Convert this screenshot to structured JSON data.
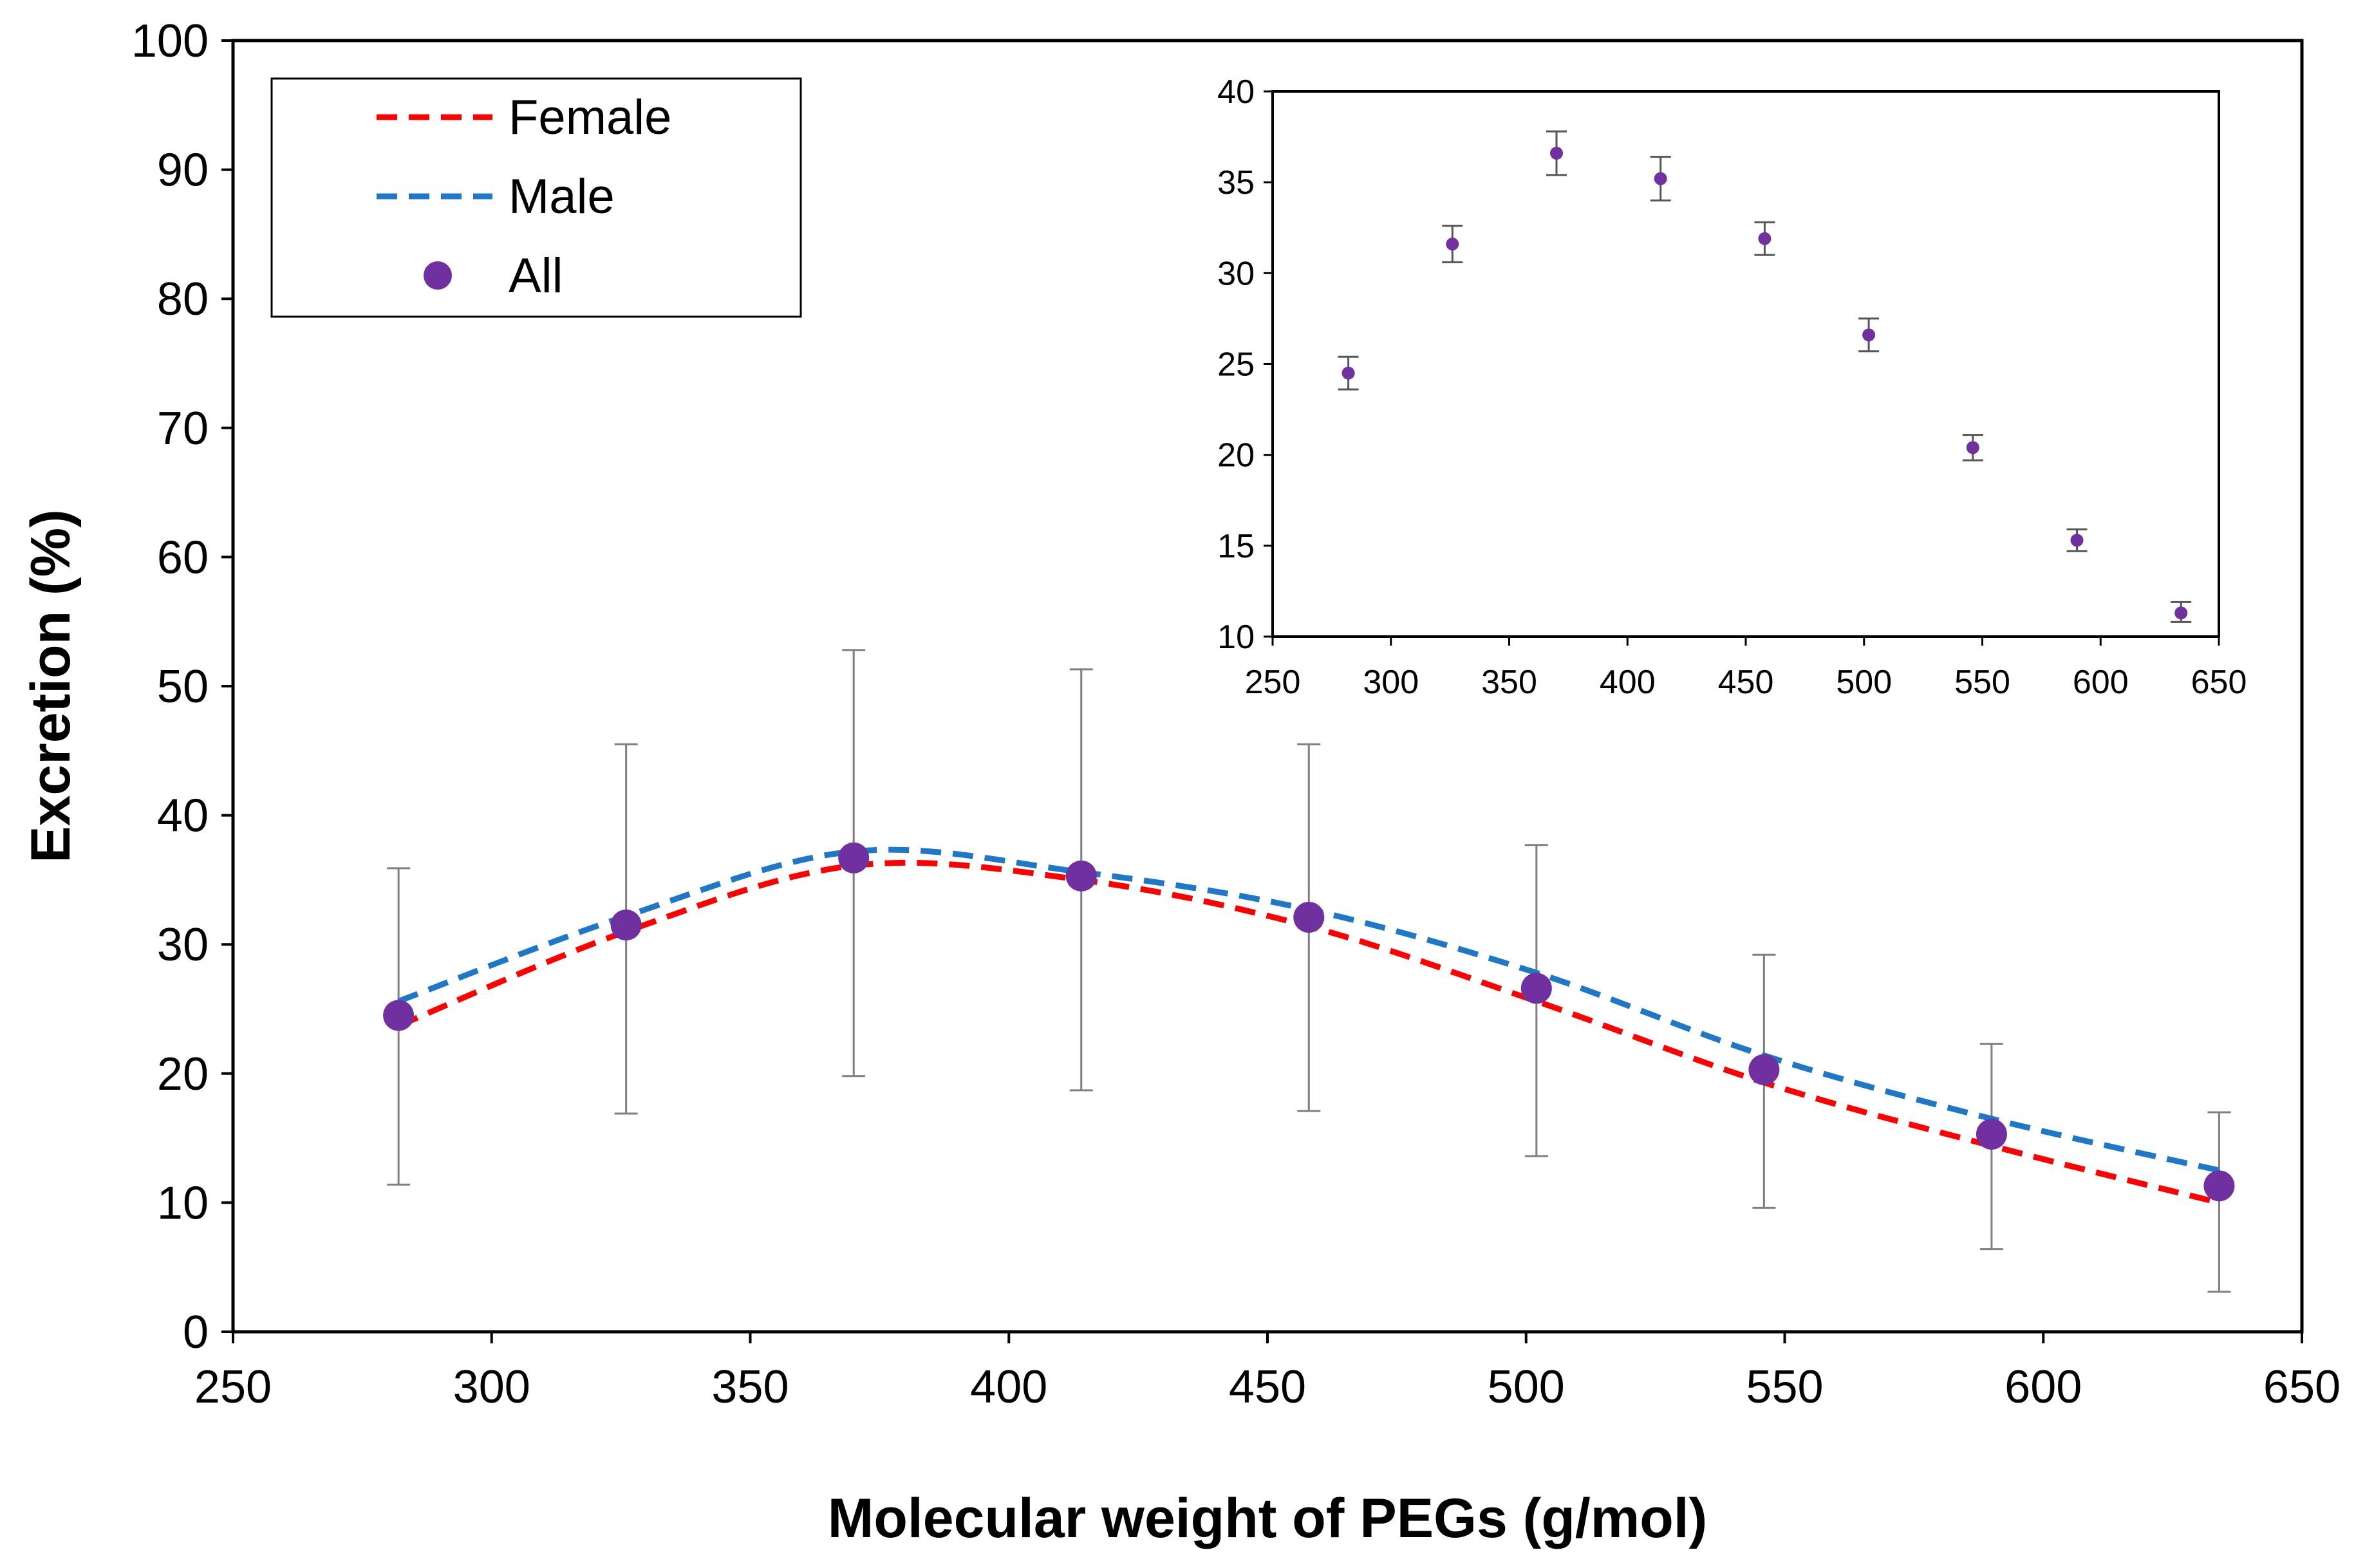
{
  "chart_data": [
    {
      "id": "main",
      "type": "line",
      "title": "",
      "xlabel": "Molecular weight of PEGs (g/mol)",
      "ylabel": "Excretion (%)",
      "xlim": [
        250,
        650
      ],
      "ylim": [
        0,
        100
      ],
      "xticks": [
        250,
        300,
        350,
        400,
        450,
        500,
        550,
        600,
        650
      ],
      "yticks": [
        0,
        10,
        20,
        30,
        40,
        50,
        60,
        70,
        80,
        90,
        100
      ],
      "grid": false,
      "legend_position": "top-left",
      "x": [
        282,
        326,
        370,
        414,
        458,
        502,
        546,
        590,
        634
      ],
      "series": [
        {
          "name": "Female",
          "style": "dashed-line",
          "color": "#ff0000",
          "values": [
            23.7,
            31.0,
            36.1,
            35.0,
            31.4,
            25.6,
            19.3,
            14.4,
            10.0
          ]
        },
        {
          "name": "Male",
          "style": "dashed-line",
          "color": "#1f77c8",
          "values": [
            25.6,
            32.2,
            37.2,
            35.6,
            32.7,
            27.8,
            21.4,
            16.5,
            12.5
          ]
        },
        {
          "name": "All",
          "style": "markers",
          "color": "#7030a0",
          "values": [
            24.5,
            31.5,
            36.7,
            35.3,
            32.1,
            26.6,
            20.3,
            15.3,
            11.3
          ],
          "error_low": [
            11.4,
            16.9,
            19.8,
            18.7,
            17.1,
            13.6,
            9.6,
            6.4,
            3.1
          ],
          "error_high": [
            35.9,
            45.5,
            52.8,
            51.3,
            45.5,
            37.7,
            29.2,
            22.3,
            17.0
          ]
        }
      ]
    },
    {
      "id": "inset",
      "type": "scatter",
      "title": "",
      "xlabel": "",
      "ylabel": "",
      "xlim": [
        250,
        650
      ],
      "ylim": [
        10,
        40
      ],
      "xticks": [
        250,
        300,
        350,
        400,
        450,
        500,
        550,
        600,
        650
      ],
      "yticks": [
        10,
        15,
        20,
        25,
        30,
        35,
        40
      ],
      "grid": false,
      "x": [
        282,
        326,
        370,
        414,
        458,
        502,
        546,
        590,
        634
      ],
      "series": [
        {
          "name": "All",
          "color": "#7030a0",
          "values": [
            24.5,
            31.6,
            36.6,
            35.2,
            31.9,
            26.6,
            20.4,
            15.3,
            11.3
          ],
          "error_low": [
            23.6,
            30.6,
            35.4,
            34.0,
            31.0,
            25.7,
            19.7,
            14.7,
            10.8
          ],
          "error_high": [
            25.4,
            32.6,
            37.8,
            36.4,
            32.8,
            27.5,
            21.1,
            15.9,
            11.9
          ]
        }
      ]
    }
  ],
  "colors": {
    "female": "#ff0000",
    "male": "#1f77c8",
    "all": "#7030a0",
    "axis": "#000000",
    "errorbar": "#7f7f7f"
  },
  "legend": {
    "items": [
      {
        "label": "Female",
        "kind": "dashed",
        "color": "#ff0000"
      },
      {
        "label": "Male",
        "kind": "dashed",
        "color": "#1f77c8"
      },
      {
        "label": "All",
        "kind": "marker",
        "color": "#7030a0"
      }
    ]
  }
}
